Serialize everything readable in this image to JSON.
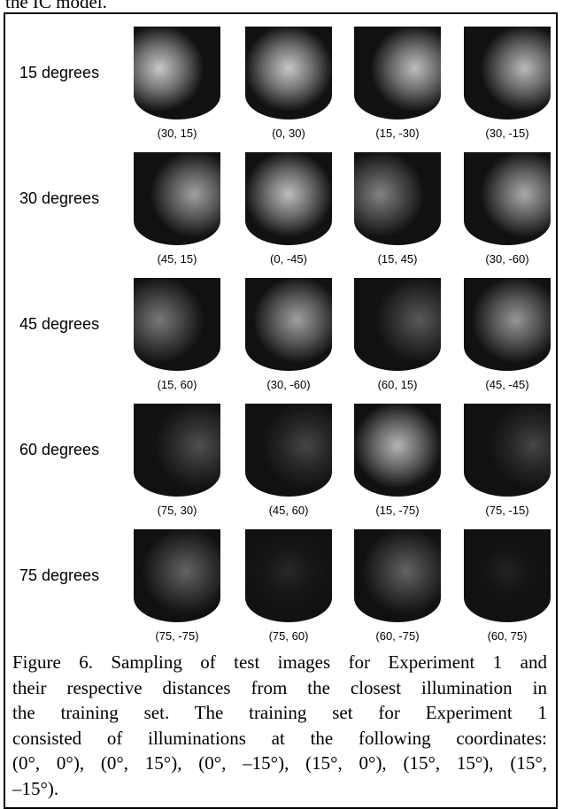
{
  "header": {
    "fragment": "the IC model."
  },
  "figure": {
    "rows": [
      {
        "label": "15 degrees",
        "images": [
          "(30, 15)",
          "(0, 30)",
          "(15, -30)",
          "(30, -15)"
        ]
      },
      {
        "label": "30 degrees",
        "images": [
          "(45, 15)",
          "(0, -45)",
          "(15, 45)",
          "(30, -60)"
        ]
      },
      {
        "label": "45 degrees",
        "images": [
          "(15, 60)",
          "(30, -60)",
          "(60, 15)",
          "(45, -45)"
        ]
      },
      {
        "label": "60 degrees",
        "images": [
          "(75, 30)",
          "(45, 60)",
          "(15, -75)",
          "(75, -15)"
        ]
      },
      {
        "label": "75 degrees",
        "images": [
          "(75, -75)",
          "(75, 60)",
          "(60, -75)",
          "(60, 75)"
        ]
      }
    ],
    "caption": [
      "Figure 6. Sampling of test images for Experiment 1 and",
      "their respective distances from the closest illumination in",
      "the training set. The training set for Experiment 1",
      "consisted of illuminations at the following coordinates:",
      "(0°, 0°), (0°, 15°), (0°, –15°), (15°, 0°), (15°, 15°), (15°,",
      "–15°)."
    ]
  }
}
